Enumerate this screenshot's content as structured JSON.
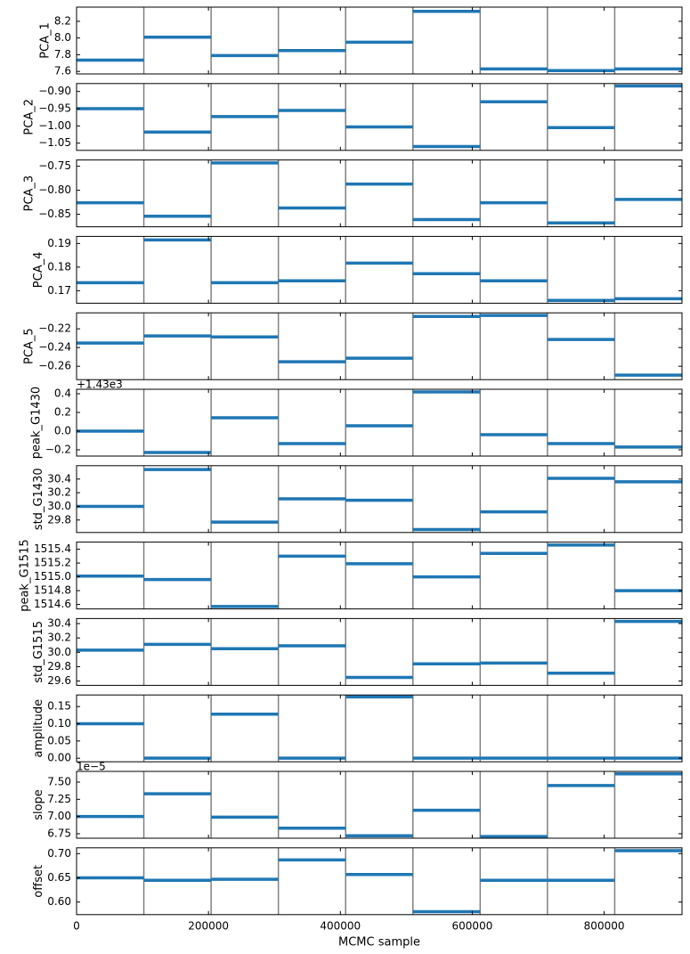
{
  "shared_x": {
    "xlabel": "MCMC sample",
    "xlim": [
      0,
      918000
    ],
    "xticks": [
      0,
      200000,
      400000,
      600000,
      800000
    ],
    "segment_edges": [
      0,
      102000,
      204000,
      306000,
      408000,
      510000,
      612000,
      714000,
      816000,
      918000
    ],
    "divider_color": "#808080"
  },
  "chart_data": [
    {
      "type": "step",
      "ylabel": "PCA_1",
      "color": "#1f77b4",
      "ylim": [
        7.57,
        8.37
      ],
      "yticks": [
        7.6,
        7.8,
        {
          "value": 8,
          "label": "8.0"
        },
        8.2
      ],
      "values": [
        7.736,
        8.01,
        7.79,
        7.85,
        7.95,
        8.32,
        7.63,
        7.61,
        7.63
      ]
    },
    {
      "type": "step",
      "ylabel": "PCA_2",
      "color": "#1f77b4",
      "ylim": [
        -1.071,
        -0.877
      ],
      "yticks": [
        {
          "value": -1.05,
          "label": "−1.05"
        },
        {
          "value": -1,
          "label": "−1.00"
        },
        {
          "value": -0.95,
          "label": "−0.95"
        },
        {
          "value": -0.9,
          "label": "−0.90"
        }
      ],
      "values": [
        -0.95,
        -1.018,
        -0.973,
        -0.955,
        -1.003,
        -1.06,
        -0.93,
        -1.005,
        -0.884
      ]
    },
    {
      "type": "step",
      "ylabel": "PCA_3",
      "color": "#1f77b4",
      "ylim": [
        -0.876,
        -0.737
      ],
      "yticks": [
        {
          "value": -0.85,
          "label": "−0.85"
        },
        {
          "value": -0.8,
          "label": "−0.80"
        },
        {
          "value": -0.75,
          "label": "−0.75"
        }
      ],
      "values": [
        -0.826,
        -0.854,
        -0.743,
        -0.837,
        -0.787,
        -0.861,
        -0.826,
        -0.868,
        -0.819
      ]
    },
    {
      "type": "step",
      "ylabel": "PCA_4",
      "color": "#1f77b4",
      "ylim": [
        0.1647,
        0.193
      ],
      "yticks": [
        0.17,
        0.18,
        0.19
      ],
      "values": [
        0.1734,
        0.1915,
        0.1734,
        0.1742,
        0.1817,
        0.1772,
        0.1742,
        0.1659,
        0.1666
      ]
    },
    {
      "type": "step",
      "ylabel": "PCA_5",
      "color": "#1f77b4",
      "ylim": [
        -0.2743,
        -0.2029
      ],
      "yticks": [
        {
          "value": -0.26,
          "label": "−0.26"
        },
        {
          "value": -0.24,
          "label": "−0.24"
        },
        {
          "value": -0.22,
          "label": "−0.22"
        }
      ],
      "values": [
        -0.2352,
        -0.2276,
        -0.2286,
        -0.2552,
        -0.2514,
        -0.2067,
        -0.2057,
        -0.2314,
        -0.2695
      ]
    },
    {
      "type": "step",
      "ylabel": "peak_G1430",
      "offset_text": "+1.43e3",
      "color": "#1f77b4",
      "ylim": [
        -0.267,
        0.448
      ],
      "yticks": [
        {
          "value": -0.2,
          "label": "−0.2"
        },
        {
          "value": 0,
          "label": "0.0"
        },
        0.2,
        0.4
      ],
      "values": [
        0,
        -0.229,
        0.143,
        -0.133,
        0.057,
        0.419,
        -0.038,
        -0.133,
        -0.171
      ]
    },
    {
      "type": "step",
      "ylabel": "std_G1430",
      "color": "#1f77b4",
      "ylim": [
        29.617,
        30.596
      ],
      "yticks": [
        29.8,
        {
          "value": 30,
          "label": "30.0"
        },
        30.2,
        30.4
      ],
      "values": [
        30,
        30.54,
        29.77,
        30.11,
        30.09,
        29.66,
        29.92,
        30.41,
        30.36
      ]
    },
    {
      "type": "step",
      "ylabel": "peak_G1515",
      "color": "#1f77b4",
      "ylim": [
        1514.535,
        1515.503
      ],
      "yticks": [
        1514.6,
        1514.8,
        {
          "value": 1515,
          "label": "1515.0"
        },
        1515.2,
        1515.4
      ],
      "values": [
        1515.01,
        1514.96,
        1514.57,
        1515.3,
        1515.19,
        1515,
        1515.34,
        1515.46,
        1514.8
      ]
    },
    {
      "type": "step",
      "ylabel": "std_G1515",
      "color": "#1f77b4",
      "ylim": [
        29.54,
        30.47
      ],
      "yticks": [
        29.6,
        29.8,
        {
          "value": 30,
          "label": "30.0"
        },
        30.2,
        30.4
      ],
      "values": [
        30.03,
        30.11,
        30.05,
        30.09,
        29.65,
        29.84,
        29.85,
        29.71,
        30.43
      ]
    },
    {
      "type": "step",
      "ylabel": "amplitude",
      "color": "#1f77b4",
      "ylim": [
        -0.0104,
        0.1837
      ],
      "yticks": [
        {
          "value": 0,
          "label": "0.00"
        },
        0.05,
        {
          "value": 0.1,
          "label": "0.10"
        },
        0.15
      ],
      "values": [
        0.1,
        0,
        0.128,
        0,
        0.178,
        0,
        0,
        0,
        0
      ]
    },
    {
      "type": "step",
      "ylabel": "slope",
      "offset_text": "1e−5",
      "color": "#1f77b4",
      "ylim": [
        6.685,
        7.655
      ],
      "yticks": [
        6.75,
        {
          "value": 7,
          "label": "7.00"
        },
        7.25,
        {
          "value": 7.5,
          "label": "7.50"
        }
      ],
      "values": [
        7,
        7.33,
        6.99,
        6.83,
        6.72,
        7.09,
        6.71,
        7.45,
        7.62
      ]
    },
    {
      "type": "step",
      "ylabel": "offset",
      "color": "#1f77b4",
      "ylim": [
        0.574,
        0.712
      ],
      "yticks": [
        {
          "value": 0.6,
          "label": "0.60"
        },
        0.65,
        {
          "value": 0.7,
          "label": "0.70"
        }
      ],
      "values": [
        0.65,
        0.645,
        0.647,
        0.687,
        0.657,
        0.58,
        0.645,
        0.645,
        0.706
      ]
    }
  ]
}
